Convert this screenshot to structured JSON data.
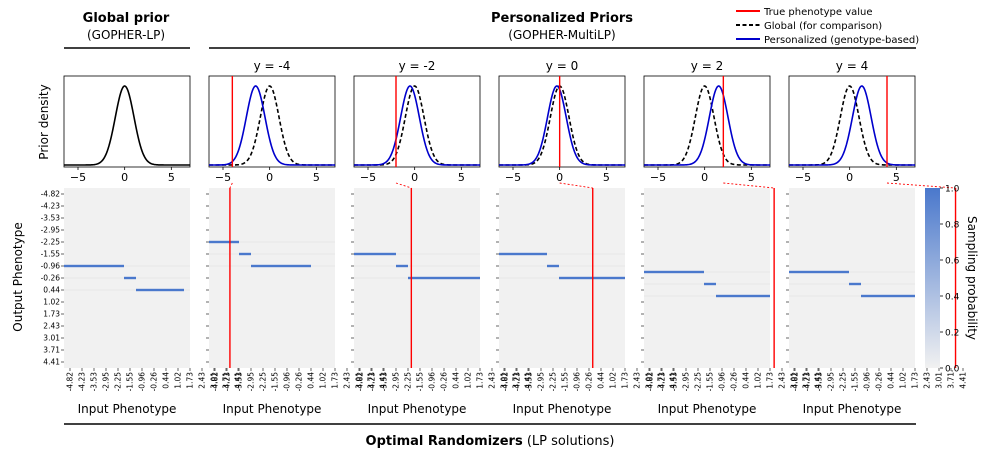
{
  "header": {
    "global_title": "Global prior",
    "global_subtitle": "(GOPHER-LP)",
    "personal_title": "Personalized Priors",
    "personal_subtitle": "(GOPHER-MultiLP)",
    "footer_bold": "Optimal Randomizers",
    "footer_rest": " (LP solutions)"
  },
  "legend": {
    "entries": [
      {
        "label": "True phenotype value",
        "color": "#ff0000",
        "style": "solid"
      },
      {
        "label": "Global (for comparison)",
        "color": "#000000",
        "style": "dashed"
      },
      {
        "label": "Personalized (genotype-based)",
        "color": "#0000cc",
        "style": "solid"
      }
    ]
  },
  "colors": {
    "global_curve": "#000000",
    "personal_curve": "#0000cc",
    "true_line": "#ff0000",
    "heat_high": "#4a78cc",
    "heat_low": "#f1f1f1"
  },
  "chart_data": {
    "type": "heatmap",
    "density_xlim": [
      -6.5,
      7
    ],
    "density_xticks": [
      "−5",
      "0",
      "5"
    ],
    "density_ylabel": "Prior density",
    "phenotype_grid": [
      "-4.82",
      "-4.23",
      "-3.53",
      "-2.95",
      "-2.25",
      "-1.55",
      "-0.96",
      "-0.26",
      "0.44",
      "1.02",
      "1.73",
      "2.43",
      "3.01",
      "3.71",
      "4.41"
    ],
    "heatmap_ylabel": "Output Phenotype",
    "heatmap_xlabel": "Input Phenotype",
    "colorbar": {
      "label": "Sampling probability",
      "ticks": [
        "0.0",
        "0.2",
        "0.4",
        "0.6",
        "0.8",
        "1.0"
      ],
      "range": [
        0,
        1
      ]
    },
    "panels": [
      {
        "id": "global",
        "y_label": "",
        "true_value": null,
        "personal_mean": null,
        "segments": [
          {
            "input_from": 0,
            "input_to": 5,
            "output": 6.5,
            "value": 1.0
          },
          {
            "input_from": 5,
            "input_to": 6,
            "output": 7.5,
            "value": 1.0
          },
          {
            "input_from": 6,
            "input_to": 10,
            "output": 8.5,
            "value": 1.0
          }
        ]
      },
      {
        "id": "y_m4",
        "y_label": "y = -4",
        "true_value": -4,
        "personal_mean": -1.5,
        "segments": [
          {
            "input_from": 0,
            "input_to": 2.5,
            "output": 4.5,
            "value": 1.0
          },
          {
            "input_from": 2.5,
            "input_to": 3.5,
            "output": 5.5,
            "value": 1.0
          },
          {
            "input_from": 3.5,
            "input_to": 8.5,
            "output": 6.5,
            "value": 1.0
          }
        ]
      },
      {
        "id": "y_m2",
        "y_label": "y = -2",
        "true_value": -2,
        "personal_mean": -0.5,
        "segments": [
          {
            "input_from": 0,
            "input_to": 3.5,
            "output": 5.5,
            "value": 1.0
          },
          {
            "input_from": 3.5,
            "input_to": 4.5,
            "output": 6.5,
            "value": 1.0
          },
          {
            "input_from": 4.5,
            "input_to": 10.5,
            "output": 7.5,
            "value": 1.0
          }
        ]
      },
      {
        "id": "y_0",
        "y_label": "y = 0",
        "true_value": 0,
        "personal_mean": -0.3,
        "segments": [
          {
            "input_from": 0,
            "input_to": 4,
            "output": 5.5,
            "value": 1.0
          },
          {
            "input_from": 4,
            "input_to": 5,
            "output": 6.5,
            "value": 1.0
          },
          {
            "input_from": 5,
            "input_to": 10.5,
            "output": 7.5,
            "value": 1.0
          }
        ]
      },
      {
        "id": "y_2",
        "y_label": "y = 2",
        "true_value": 2,
        "personal_mean": 1.5,
        "segments": [
          {
            "input_from": 0,
            "input_to": 5,
            "output": 7,
            "value": 1.0
          },
          {
            "input_from": 5,
            "input_to": 6,
            "output": 8,
            "value": 1.0
          },
          {
            "input_from": 6,
            "input_to": 10.5,
            "output": 9,
            "value": 1.0
          }
        ]
      },
      {
        "id": "y_4",
        "y_label": "y = 4",
        "true_value": 4,
        "personal_mean": 1.3,
        "segments": [
          {
            "input_from": 0,
            "input_to": 5,
            "output": 7,
            "value": 1.0
          },
          {
            "input_from": 5,
            "input_to": 6,
            "output": 8,
            "value": 1.0
          },
          {
            "input_from": 6,
            "input_to": 10.5,
            "output": 9,
            "value": 1.0
          }
        ]
      }
    ]
  }
}
